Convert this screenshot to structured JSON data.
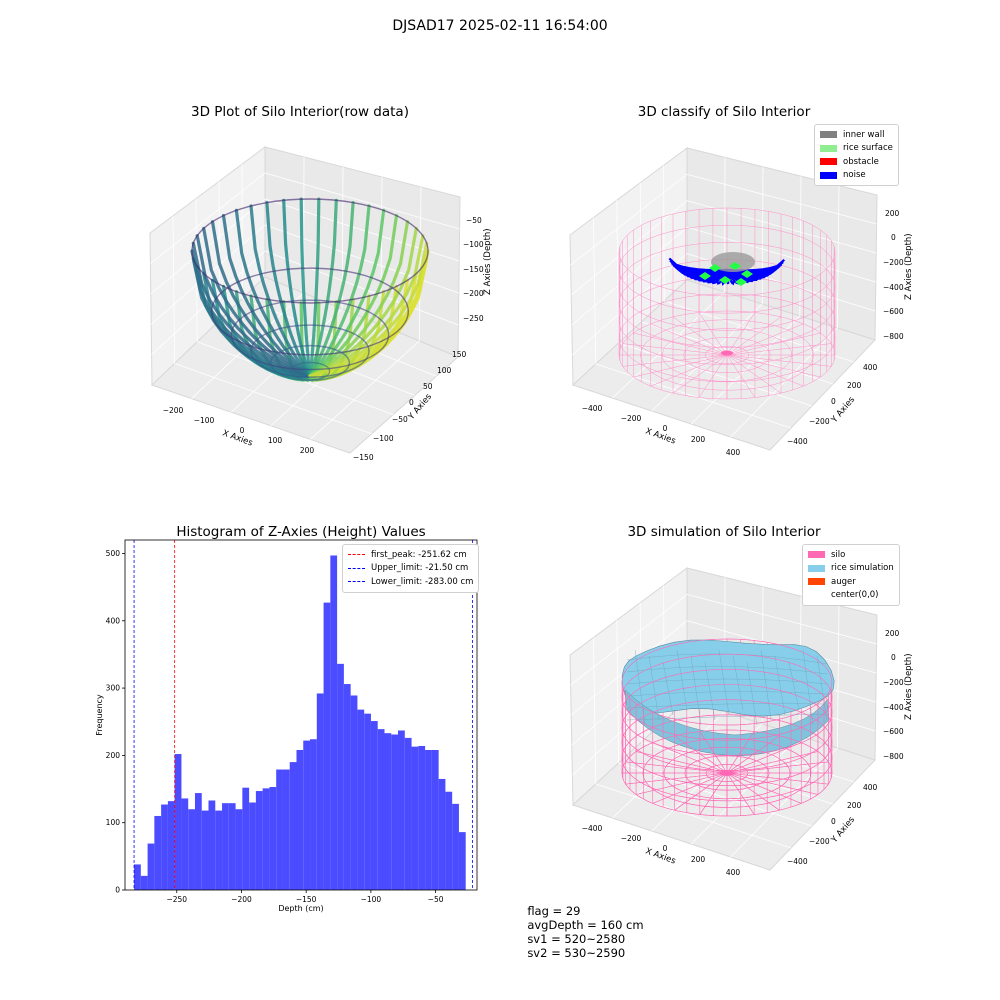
{
  "figure": {
    "suptitle": "DJSAD17 2025-02-11 16:54:00"
  },
  "panels": {
    "raw": {
      "title": "3D Plot of Silo Interior(row data)",
      "xlabel": "X Axies",
      "ylabel": "Y Axies",
      "zlabel": "Z Axies (Depth)",
      "xticks": [
        "−200",
        "−100",
        "0",
        "100",
        "200"
      ],
      "yticks": [
        "150",
        "100",
        "50",
        "0",
        "−50",
        "−100",
        "−150"
      ],
      "zticks": [
        "−50",
        "−100",
        "−150",
        "−200",
        "−250"
      ],
      "colormap": "viridis"
    },
    "classify": {
      "title": "3D classify of Silo Interior",
      "xlabel": "X Axies",
      "ylabel": "Y Axies",
      "zlabel": "Z Axies (Depth)",
      "xticks": [
        "−400",
        "−200",
        "0",
        "200",
        "400"
      ],
      "yticks": [
        "400",
        "200",
        "0",
        "−200",
        "−400"
      ],
      "zticks": [
        "200",
        "0",
        "−200",
        "−400",
        "−600",
        "−800"
      ],
      "legend": [
        {
          "label": "inner wall",
          "color": "#808080"
        },
        {
          "label": "rice surface",
          "color": "#90ee90"
        },
        {
          "label": "obstacle",
          "color": "#ff0000"
        },
        {
          "label": "noise",
          "color": "#0000ff"
        }
      ]
    },
    "simulation": {
      "title": "3D simulation of Silo Interior",
      "xlabel": "X Axies",
      "ylabel": "Y Axies",
      "zlabel": "Z Axies (Depth)",
      "xticks": [
        "−400",
        "−200",
        "0",
        "200",
        "400"
      ],
      "yticks": [
        "400",
        "200",
        "0",
        "−200",
        "−400"
      ],
      "zticks": [
        "200",
        "0",
        "−200",
        "−400",
        "−600",
        "−800"
      ],
      "legend": [
        {
          "label": "silo",
          "color": "#ff69b4"
        },
        {
          "label": "rice simulation",
          "color": "#87ceeb"
        },
        {
          "label": "auger",
          "color": "#ff4500"
        },
        {
          "label": "center(0,0)",
          "color": "#ffffff"
        }
      ]
    }
  },
  "chart_data": {
    "type": "bar",
    "title": "Histogram of Z-Axies (Height) Values",
    "xlabel": "Depth (cm)",
    "ylabel": "Frequency",
    "xlim": [
      -290,
      -18
    ],
    "ylim": [
      0,
      520
    ],
    "xticks": [
      -250,
      -200,
      -150,
      -100,
      -50
    ],
    "xtick_labels": [
      "−250",
      "−200",
      "−150",
      "−100",
      "−50"
    ],
    "yticks": [
      0,
      100,
      200,
      300,
      400,
      500
    ],
    "bar_color": "#4b4bff",
    "bin_start": -283.0,
    "bin_width": 5.23,
    "values": [
      38,
      21,
      69,
      110,
      127,
      132,
      202,
      136,
      120,
      144,
      118,
      133,
      118,
      129,
      129,
      120,
      152,
      130,
      147,
      151,
      153,
      179,
      179,
      190,
      208,
      222,
      224,
      292,
      427,
      497,
      336,
      306,
      289,
      268,
      262,
      251,
      239,
      233,
      231,
      237,
      226,
      213,
      214,
      208,
      208,
      165,
      146,
      128,
      86
    ],
    "reference_lines": [
      {
        "label": "first_peak: -251.62 cm",
        "x": -251.62,
        "color": "#ff0000"
      },
      {
        "label": "Upper_limit: -21.50 cm",
        "x": -21.5,
        "color": "#0000ff"
      },
      {
        "label": "Lower_limit: -283.00 cm",
        "x": -283.0,
        "color": "#0000ff"
      }
    ],
    "legend_position": "upper right"
  },
  "footer": {
    "flag": "flag = 29",
    "avg_depth": "avgDepth = 160 cm",
    "sv1": "sv1 = 520~2580",
    "sv2": "sv2 = 530~2590"
  }
}
